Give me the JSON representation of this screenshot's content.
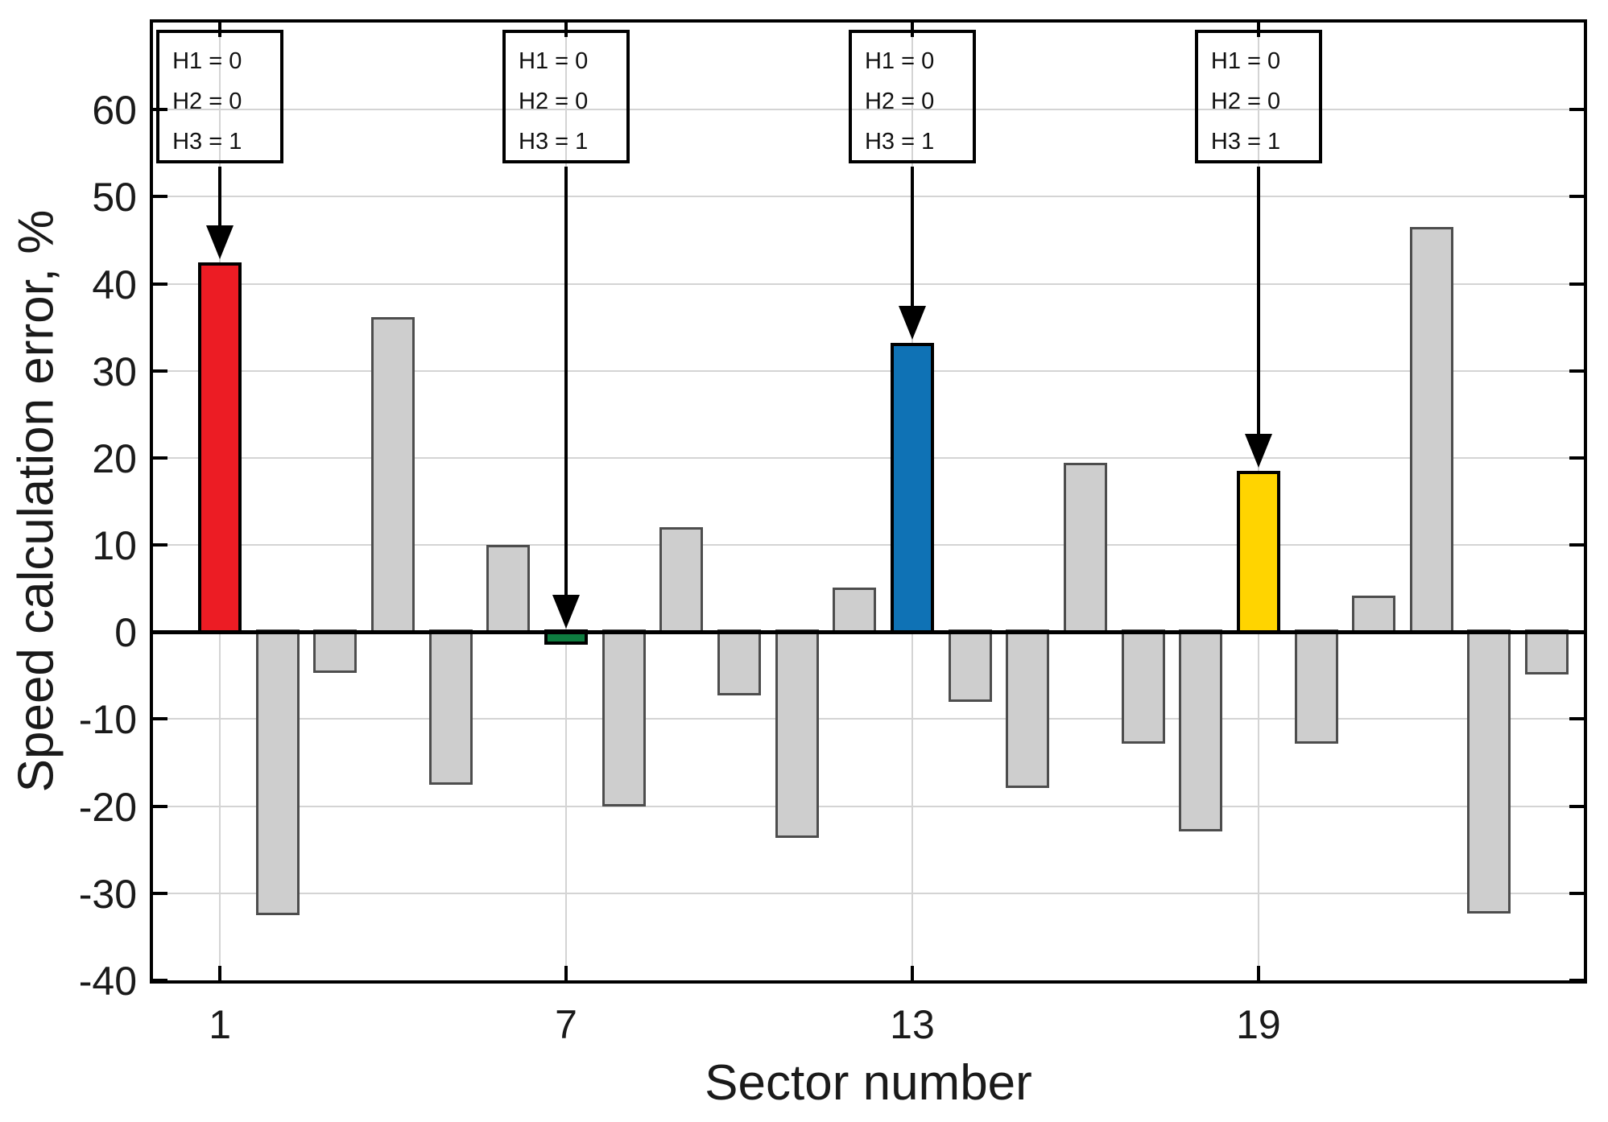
{
  "chart_data": {
    "type": "bar",
    "title": "",
    "xlabel": "Sector number",
    "ylabel": "Speed calculation error, %",
    "categories": [
      1,
      2,
      3,
      4,
      5,
      6,
      7,
      8,
      9,
      10,
      11,
      12,
      13,
      14,
      15,
      16,
      17,
      18,
      19,
      20,
      21,
      22,
      23,
      24
    ],
    "values": [
      42.5,
      -32.5,
      -4.7,
      36.2,
      -17.5,
      10.0,
      -1.5,
      -20.0,
      12.0,
      -7.3,
      -23.6,
      5.1,
      33.2,
      -8.0,
      -17.9,
      19.4,
      -12.8,
      -22.9,
      18.5,
      -12.8,
      4.2,
      46.5,
      -32.3,
      -4.9
    ],
    "x_tick_values": [
      1,
      7,
      13,
      19
    ],
    "x_tick_labels": [
      "1",
      "7",
      "13",
      "19"
    ],
    "y_tick_values": [
      -40,
      -30,
      -20,
      -10,
      0,
      10,
      20,
      30,
      40,
      50,
      60
    ],
    "y_tick_labels": [
      "-40",
      "-30",
      "-20",
      "-10",
      "0",
      "10",
      "20",
      "30",
      "40",
      "50",
      "60"
    ],
    "ylim": [
      -40,
      70
    ],
    "xlim": [
      -0.16,
      24.64
    ],
    "grid": "on",
    "legend": "none",
    "highlighted_bars": [
      {
        "sector": 1,
        "color_name": "red",
        "color": "#ec1c24"
      },
      {
        "sector": 7,
        "color_name": "green",
        "color": "#0e7c3f"
      },
      {
        "sector": 13,
        "color_name": "blue",
        "color": "#0f72b5"
      },
      {
        "sector": 19,
        "color_name": "yellow",
        "color": "#ffd400"
      }
    ],
    "annotations": [
      {
        "target_sector": 1,
        "lines": [
          "H1 = 0",
          "H2 = 0",
          "H3 = 1"
        ]
      },
      {
        "target_sector": 7,
        "lines": [
          "H1 = 0",
          "H2 = 0",
          "H3 = 1"
        ]
      },
      {
        "target_sector": 13,
        "lines": [
          "H1 = 0",
          "H2 = 0",
          "H3 = 1"
        ]
      },
      {
        "target_sector": 19,
        "lines": [
          "H1 = 0",
          "H2 = 0",
          "H3 = 1"
        ]
      }
    ]
  },
  "colors": {
    "bar_default_fill": "#cecece",
    "bar_default_edge": "#4d4d4d",
    "highlight_edge": "#000000",
    "gridline": "#d4d4d4",
    "axis": "#000000",
    "text": "#1a1a1a",
    "background": "#ffffff"
  }
}
